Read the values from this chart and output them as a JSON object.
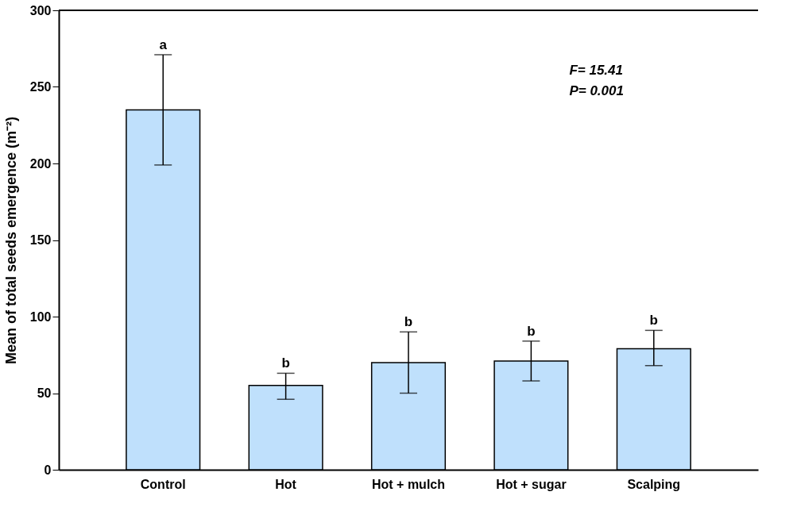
{
  "chart_data": {
    "type": "bar",
    "ylabel": "Mean of total seeds emergence (m⁻²)",
    "categories": [
      "Control",
      "Hot",
      "Hot + mulch",
      "Hot + sugar",
      "Scalping"
    ],
    "values": [
      235,
      55,
      70,
      71,
      79
    ],
    "errors": [
      [
        199,
        271
      ],
      [
        46,
        63
      ],
      [
        50,
        90
      ],
      [
        58,
        84
      ],
      [
        68,
        91
      ]
    ],
    "color": "#bfe0fc",
    "ylim": [
      0,
      300
    ],
    "yticks": [
      0,
      50,
      100,
      150,
      200,
      250,
      300
    ],
    "grid": false,
    "annotations": [
      {
        "text": "a",
        "x": "Control",
        "y": 271
      },
      {
        "text": "b",
        "x": "Hot",
        "y": 63
      },
      {
        "text": "b",
        "x": "Hot + mulch",
        "y": 90
      },
      {
        "text": "b",
        "x": "Hot + sugar",
        "y": 84
      },
      {
        "text": "b",
        "x": "Scalping",
        "y": 91
      },
      "F= 15.41",
      "P= 0.001"
    ]
  }
}
